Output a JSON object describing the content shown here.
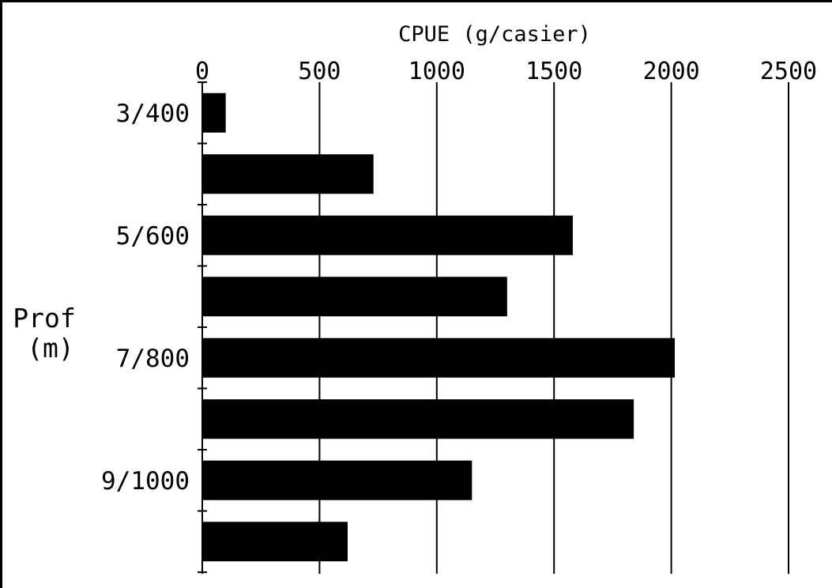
{
  "chart_data": {
    "type": "bar",
    "orientation": "horizontal",
    "title": "",
    "xlabel": "CPUE (g/casier)",
    "ylabel_lines": [
      "Prof",
      "(m)"
    ],
    "xlim": [
      0,
      2500
    ],
    "xticks": [
      "0",
      "500",
      "1000",
      "1500",
      "2000",
      "2500"
    ],
    "categories": [
      "3/400",
      "",
      "5/600",
      "",
      "7/800",
      "",
      "9/1000",
      ""
    ],
    "values": [
      100,
      730,
      1580,
      1300,
      2015,
      1840,
      1150,
      620
    ],
    "bar_color": "#000000",
    "grid": "vertical"
  }
}
